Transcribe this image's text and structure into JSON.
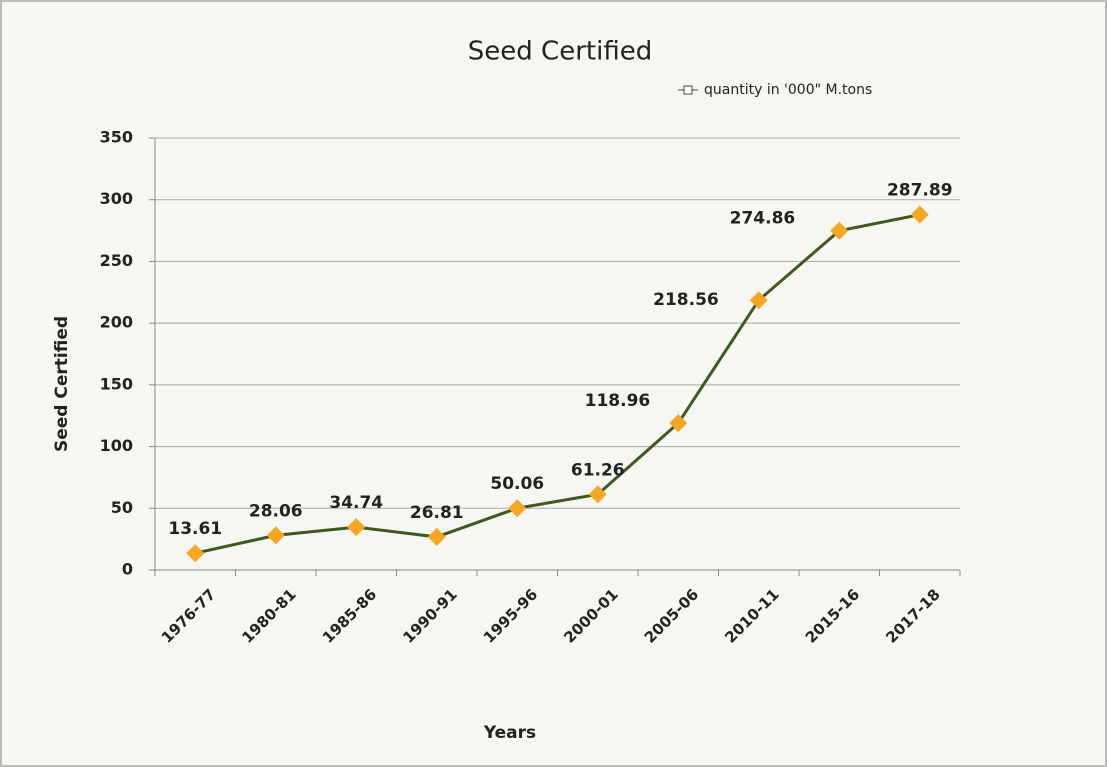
{
  "chart_data": {
    "type": "line",
    "title": "Seed Certified",
    "x_label": "Years",
    "y_label": "Seed Certified",
    "categories": [
      "1976-77",
      "1980-81",
      "1985-86",
      "1990-91",
      "1995-96",
      "2000-01",
      "2005-06",
      "2010-11",
      "2015-16",
      "2017-18"
    ],
    "series": [
      {
        "name": "quantity in '000\" M.tons",
        "color": "#3d5a1e",
        "marker_color": "#f5a623",
        "values": [
          13.61,
          28.06,
          34.74,
          26.81,
          50.06,
          61.26,
          118.96,
          218.56,
          274.86,
          287.89
        ]
      }
    ],
    "ylim": [
      0,
      350
    ],
    "yticks": [
      0,
      50,
      100,
      150,
      200,
      250,
      300,
      350
    ],
    "grid": true,
    "legend": "top-right"
  }
}
